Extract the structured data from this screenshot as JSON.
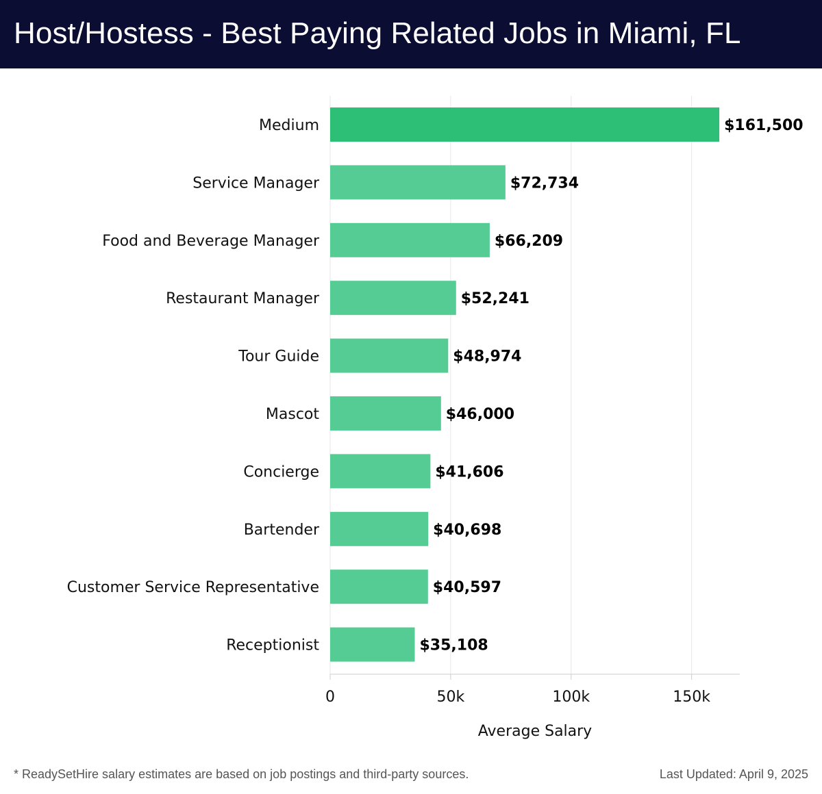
{
  "header": {
    "title": "Host/Hostess - Best Paying Related Jobs in Miami, FL"
  },
  "footer": {
    "note": "* ReadySetHire salary estimates are based on job postings and third-party sources.",
    "updated": "Last Updated: April 9, 2025"
  },
  "colors": {
    "header_bg": "#0b0d33",
    "bar_highlight": "#2ebf77",
    "bar_default": "#55cc93",
    "grid": "#e6e6e6"
  },
  "chart_data": {
    "type": "bar",
    "orientation": "horizontal",
    "title": "Host/Hostess - Best Paying Related Jobs in Miami, FL",
    "xlabel": "Average Salary",
    "ylabel": "",
    "xlim": [
      0,
      170000
    ],
    "grid": true,
    "x_ticks": [
      {
        "value": 0,
        "label": "0"
      },
      {
        "value": 50000,
        "label": "50k"
      },
      {
        "value": 100000,
        "label": "100k"
      },
      {
        "value": 150000,
        "label": "150k"
      }
    ],
    "categories": [
      "Medium",
      "Service Manager",
      "Food and Beverage Manager",
      "Restaurant Manager",
      "Tour Guide",
      "Mascot",
      "Concierge",
      "Bartender",
      "Customer Service Representative",
      "Receptionist"
    ],
    "values": [
      161500,
      72734,
      66209,
      52241,
      48974,
      46000,
      41606,
      40698,
      40597,
      35108
    ],
    "value_labels": [
      "$161,500",
      "$72,734",
      "$66,209",
      "$52,241",
      "$48,974",
      "$46,000",
      "$41,606",
      "$40,698",
      "$40,597",
      "$35,108"
    ],
    "highlight_index": 0
  }
}
